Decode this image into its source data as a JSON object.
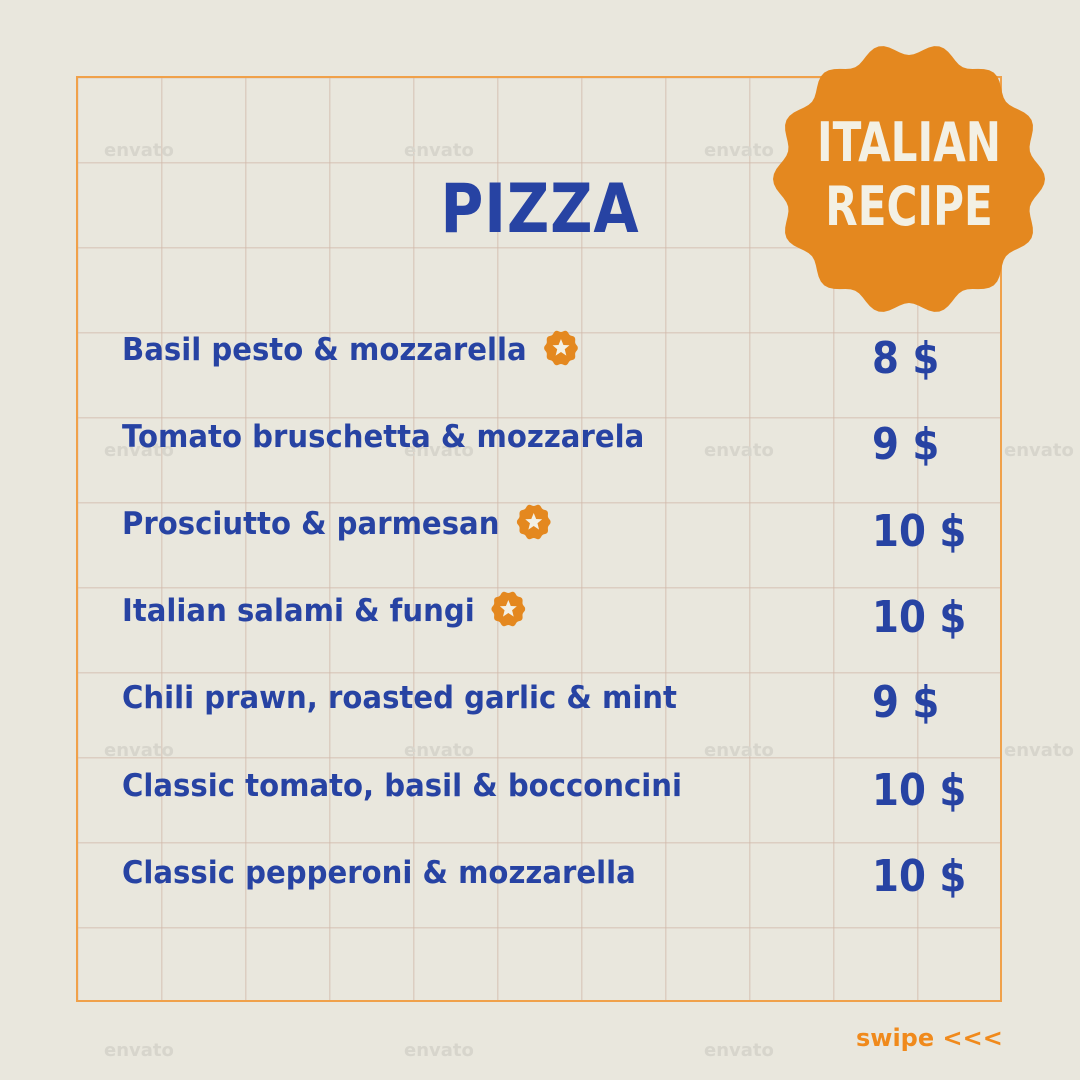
{
  "title": "PIZZA",
  "badge": {
    "line1": "ITALIAN",
    "line2": "RECIPE",
    "color": "#e4881f"
  },
  "items": [
    {
      "name": "Basil pesto & mozzarella",
      "price": "8 $",
      "starred": true
    },
    {
      "name": "Tomato bruschetta & mozzarela",
      "price": "9 $",
      "starred": false
    },
    {
      "name": "Prosciutto & parmesan",
      "price": "10 $",
      "starred": true
    },
    {
      "name": "Italian salami & fungi",
      "price": "10 $",
      "starred": true
    },
    {
      "name": "Chili prawn, roasted garlic & mint",
      "price": "9 $",
      "starred": false
    },
    {
      "name": "Classic tomato, basil & bocconcini",
      "price": "10 $",
      "starred": false
    },
    {
      "name": "Classic pepperoni & mozzarella",
      "price": "10 $",
      "starred": false
    }
  ],
  "swipe": "swipe <<<",
  "watermark": "envato",
  "colors": {
    "text": "#2743a3",
    "accent": "#e4881f",
    "background": "#e9e7dd"
  }
}
